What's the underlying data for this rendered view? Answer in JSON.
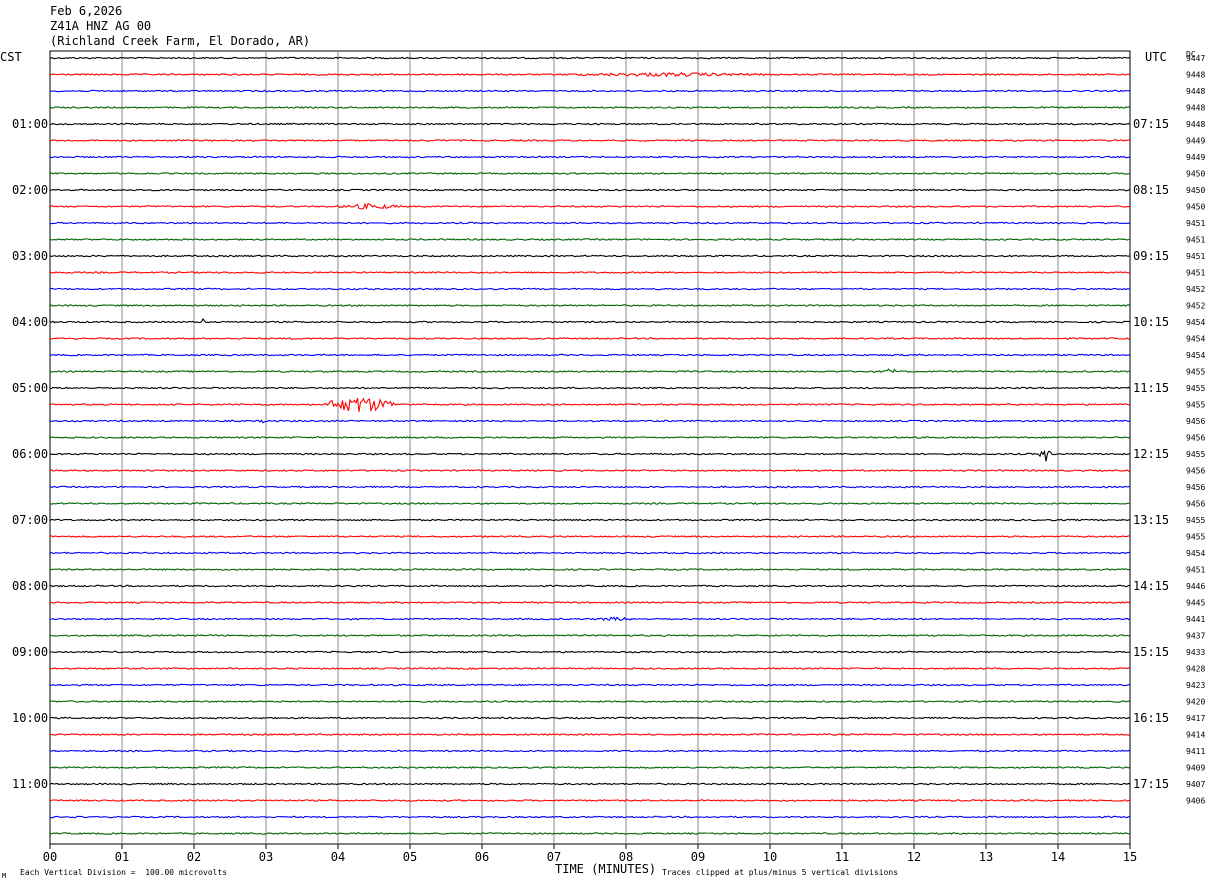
{
  "header": {
    "date": "Feb 6,2026",
    "station": "Z41A HNZ AG 00",
    "location": "(Richland Creek Farm, El Dorado, AR)"
  },
  "left_axis_title": "CST",
  "right_axis_title": "UTC",
  "dc_title": "DC",
  "footer": {
    "scale_note": "Each Vertical Division =  100.00 microvolts",
    "xlabel": "TIME (MINUTES)",
    "clip_note": "Traces clipped at plus/minus 5 vertical divisions",
    "corner_mark": "M"
  },
  "colors": {
    "black": "#000000",
    "red": "#ff0000",
    "blue": "#0000ff",
    "green": "#006400",
    "grid": "#888888"
  },
  "chart_data": {
    "type": "line",
    "title": "Feb 6,2026 Z41A HNZ AG 00 (Richland Creek Farm, El Dorado, AR)",
    "xlabel": "TIME (MINUTES)",
    "x_ticks": [
      "00",
      "01",
      "02",
      "03",
      "04",
      "05",
      "06",
      "07",
      "08",
      "09",
      "10",
      "11",
      "12",
      "13",
      "14",
      "15"
    ],
    "xlim": [
      0,
      15
    ],
    "trace_minutes": 15,
    "trace_count": 48,
    "trace_colors_cycle": [
      "black",
      "red",
      "blue",
      "green"
    ],
    "left_hour_labels": [
      "01:00",
      "02:00",
      "03:00",
      "04:00",
      "05:00",
      "06:00",
      "07:00",
      "08:00",
      "09:00",
      "10:00",
      "11:00"
    ],
    "right_hour_labels": [
      "07:15",
      "08:15",
      "09:15",
      "10:15",
      "11:15",
      "12:15",
      "13:15",
      "14:15",
      "15:15",
      "16:15",
      "17:15"
    ],
    "dc_offsets": [
      9447,
      9448,
      9448,
      9448,
      9448,
      9449,
      9449,
      9450,
      9450,
      9450,
      9451,
      9451,
      9451,
      9451,
      9452,
      9452,
      9454,
      9454,
      9454,
      9455,
      9455,
      9455,
      9456,
      9456,
      9455,
      9456,
      9456,
      9456,
      9455,
      9455,
      9454,
      9451,
      9446,
      9445,
      9441,
      9437,
      9433,
      9428,
      9423,
      9420,
      9417,
      9414,
      9411,
      9409,
      9407,
      9406
    ],
    "events": [
      {
        "trace": 1,
        "start_min": 6.8,
        "end_min": 10.3,
        "amplitude": 2
      },
      {
        "trace": 9,
        "start_min": 4.0,
        "end_min": 4.9,
        "amplitude": 3
      },
      {
        "trace": 16,
        "start_min": 2.1,
        "end_min": 2.15,
        "amplitude": 4
      },
      {
        "trace": 19,
        "start_min": 11.6,
        "end_min": 11.75,
        "amplitude": 4
      },
      {
        "trace": 21,
        "start_min": 3.8,
        "end_min": 4.8,
        "amplitude": 9
      },
      {
        "trace": 22,
        "start_min": 2.9,
        "end_min": 3.05,
        "amplitude": 2
      },
      {
        "trace": 24,
        "start_min": 13.75,
        "end_min": 13.9,
        "amplitude": 8
      },
      {
        "trace": 34,
        "start_min": 7.5,
        "end_min": 8.2,
        "amplitude": 2
      }
    ],
    "grid": true
  }
}
